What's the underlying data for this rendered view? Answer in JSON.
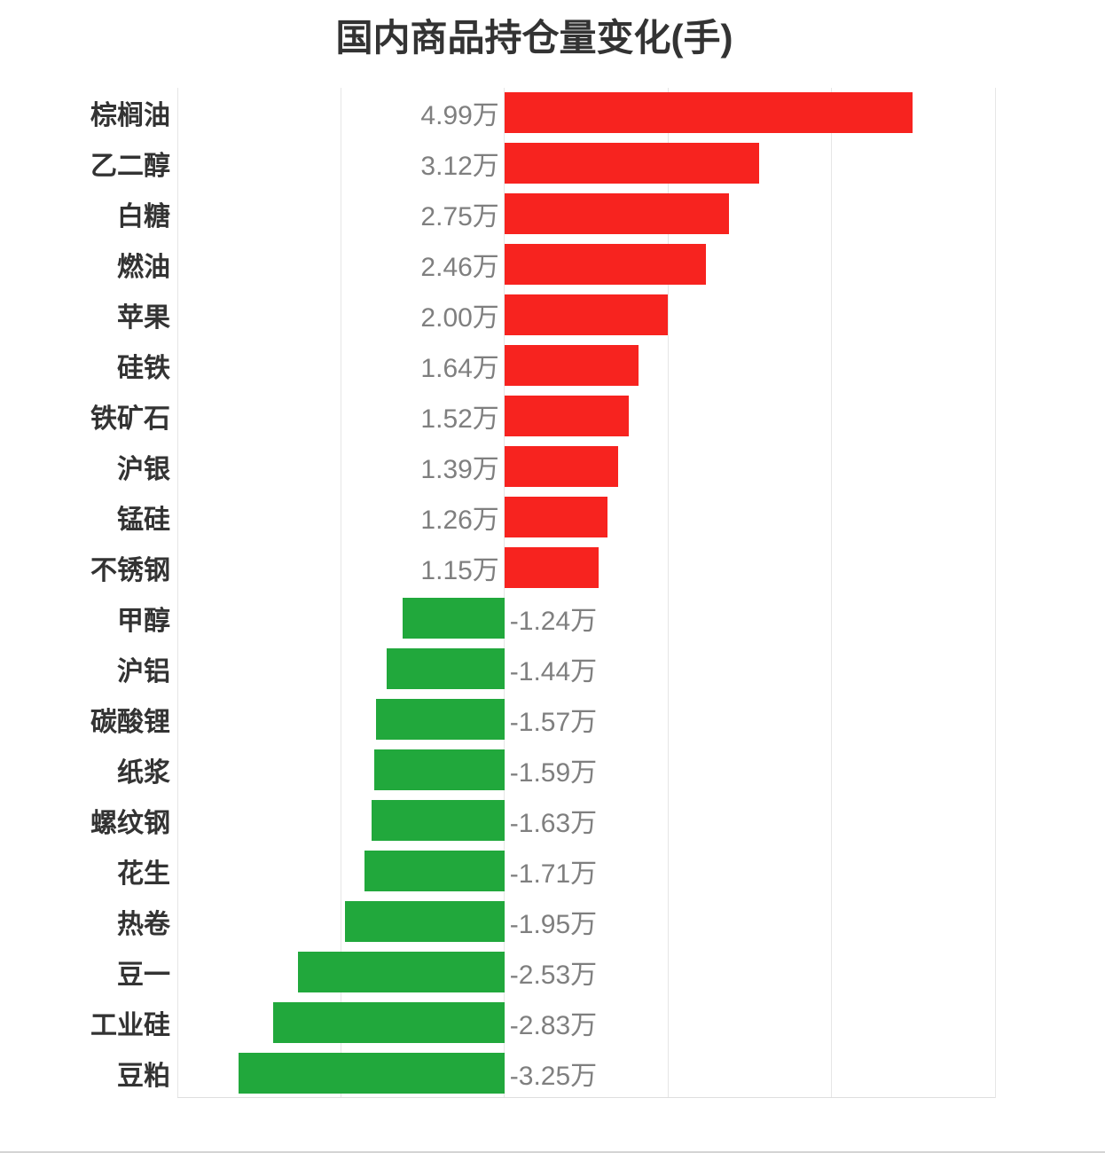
{
  "chart_data": {
    "type": "bar",
    "orientation": "horizontal",
    "title": "国内商品持仓量变化(手)",
    "value_unit": "万手",
    "xlim": [
      -4,
      6
    ],
    "x_gridline_step": 2,
    "grid": true,
    "legend_position": "none",
    "colors": {
      "positive_bar": "#f7231f",
      "negative_bar": "#21a83c",
      "title_text": "#333333",
      "category_label": "#333333",
      "value_label": "#7f7f7f",
      "gridline": "#e6e6e6",
      "axis_line": "#dedede"
    },
    "items": [
      {
        "category": "棕榈油",
        "value": 4.99,
        "label": "4.99万"
      },
      {
        "category": "乙二醇",
        "value": 3.12,
        "label": "3.12万"
      },
      {
        "category": "白糖",
        "value": 2.75,
        "label": "2.75万"
      },
      {
        "category": "燃油",
        "value": 2.46,
        "label": "2.46万"
      },
      {
        "category": "苹果",
        "value": 2.0,
        "label": "2.00万"
      },
      {
        "category": "硅铁",
        "value": 1.64,
        "label": "1.64万"
      },
      {
        "category": "铁矿石",
        "value": 1.52,
        "label": "1.52万"
      },
      {
        "category": "沪银",
        "value": 1.39,
        "label": "1.39万"
      },
      {
        "category": "锰硅",
        "value": 1.26,
        "label": "1.26万"
      },
      {
        "category": "不锈钢",
        "value": 1.15,
        "label": "1.15万"
      },
      {
        "category": "甲醇",
        "value": -1.24,
        "label": "-1.24万"
      },
      {
        "category": "沪铝",
        "value": -1.44,
        "label": "-1.44万"
      },
      {
        "category": "碳酸锂",
        "value": -1.57,
        "label": "-1.57万"
      },
      {
        "category": "纸浆",
        "value": -1.59,
        "label": "-1.59万"
      },
      {
        "category": "螺纹钢",
        "value": -1.63,
        "label": "-1.63万"
      },
      {
        "category": "花生",
        "value": -1.71,
        "label": "-1.71万"
      },
      {
        "category": "热卷",
        "value": -1.95,
        "label": "-1.95万"
      },
      {
        "category": "豆一",
        "value": -2.53,
        "label": "-2.53万"
      },
      {
        "category": "工业硅",
        "value": -2.83,
        "label": "-2.83万"
      },
      {
        "category": "豆粕",
        "value": -3.25,
        "label": "-3.25万"
      }
    ]
  }
}
